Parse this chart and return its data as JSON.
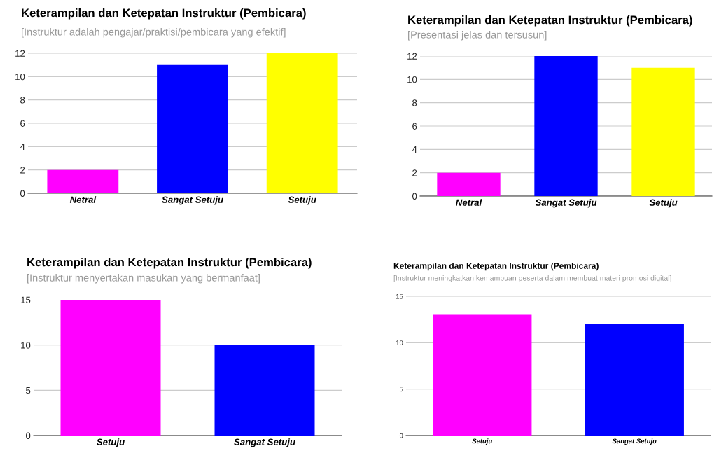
{
  "chart_data": [
    {
      "type": "bar",
      "title": "Keterampilan dan Ketepatan Instruktur (Pembicara)",
      "subtitle": "[Instruktur adalah pengajar/praktisi/pembicara yang efektif]",
      "categories": [
        "Netral",
        "Sangat Setuju",
        "Setuju"
      ],
      "values": [
        2,
        11,
        12
      ],
      "colors": [
        "#ff00ff",
        "#0000ff",
        "#ffff00"
      ],
      "ylim": [
        0,
        12
      ],
      "yticks": [
        0,
        2,
        4,
        6,
        8,
        10,
        12
      ],
      "grid": "y",
      "legend": false
    },
    {
      "type": "bar",
      "title": "Keterampilan dan Ketepatan Instruktur (Pembicara)",
      "subtitle": "[Presentasi jelas dan tersusun]",
      "categories": [
        "Netral",
        "Sangat Setuju",
        "Setuju"
      ],
      "values": [
        2,
        12,
        11
      ],
      "colors": [
        "#ff00ff",
        "#0000ff",
        "#ffff00"
      ],
      "ylim": [
        0,
        12
      ],
      "yticks": [
        0,
        2,
        4,
        6,
        8,
        10,
        12
      ],
      "grid": "y",
      "legend": false
    },
    {
      "type": "bar",
      "title": "Keterampilan dan Ketepatan Instruktur (Pembicara)",
      "subtitle": "[Instruktur menyertakan masukan yang bermanfaat]",
      "categories": [
        "Setuju",
        "Sangat Setuju"
      ],
      "values": [
        15,
        10
      ],
      "colors": [
        "#ff00ff",
        "#0000ff"
      ],
      "ylim": [
        0,
        15
      ],
      "yticks": [
        0,
        5,
        10,
        15
      ],
      "grid": "y",
      "legend": false
    },
    {
      "type": "bar",
      "title": "Keterampilan dan Ketepatan Instruktur (Pembicara)",
      "subtitle": "[Instruktur meningkatkan kemampuan peserta dalam membuat materi promosi digital]",
      "categories": [
        "Setuju",
        "Sangat Setuju"
      ],
      "values": [
        13,
        12
      ],
      "colors": [
        "#ff00ff",
        "#0000ff"
      ],
      "ylim": [
        0,
        15
      ],
      "yticks": [
        0,
        5,
        10,
        15
      ],
      "grid": "y",
      "legend": false
    }
  ]
}
